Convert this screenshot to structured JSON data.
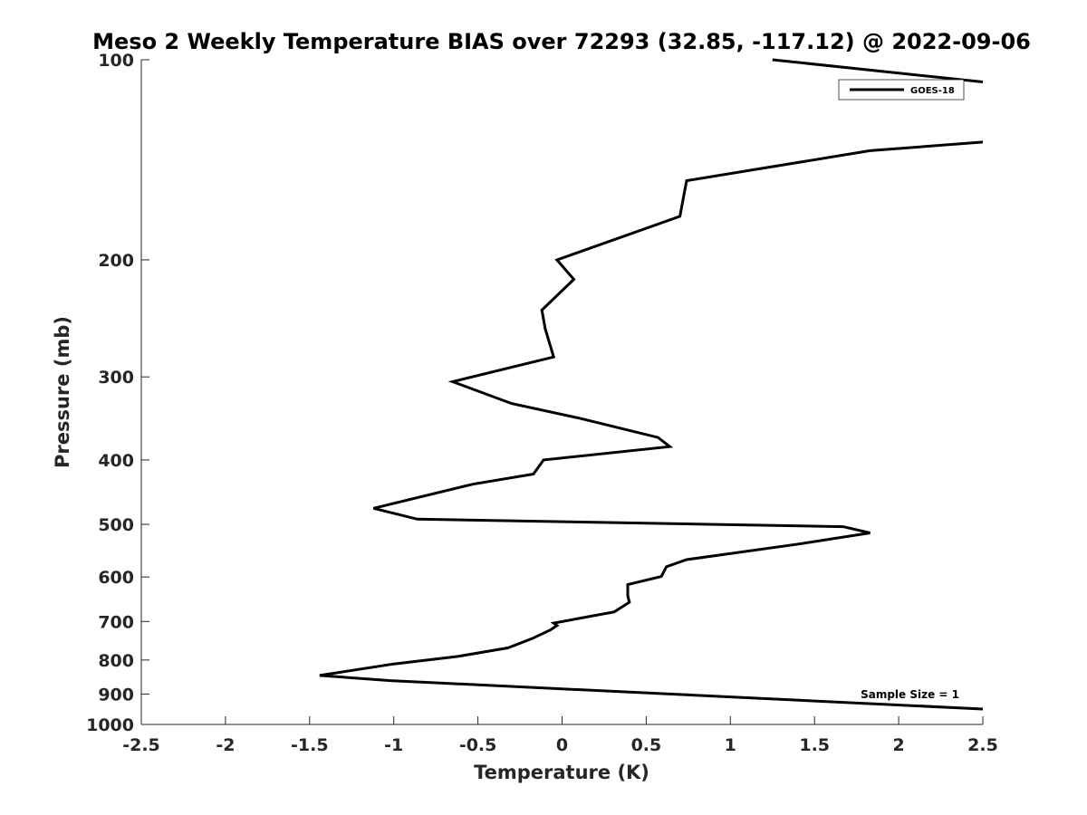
{
  "chart_data": {
    "type": "line",
    "title": "Meso 2 Weekly Temperature BIAS over 72293 (32.85, -117.12) @ 2022-09-06",
    "xlabel": "Temperature (K)",
    "ylabel": "Pressure (mb)",
    "xlim": [
      -2.5,
      2.5
    ],
    "ylim": [
      100,
      1000
    ],
    "y_scale": "log",
    "y_reversed": true,
    "x_ticks": [
      "-2.5",
      "-2",
      "-1.5",
      "-1",
      "-0.5",
      "0",
      "0.5",
      "1",
      "1.5",
      "2",
      "2.5"
    ],
    "x_tick_values": [
      -2.5,
      -2,
      -1.5,
      -1,
      -0.5,
      0,
      0.5,
      1,
      1.5,
      2,
      2.5
    ],
    "y_ticks": [
      "100",
      "200",
      "300",
      "400",
      "500",
      "600",
      "700",
      "800",
      "900",
      "1000"
    ],
    "y_tick_values": [
      100,
      200,
      300,
      400,
      500,
      600,
      700,
      800,
      900,
      1000
    ],
    "grid": false,
    "legend_position": "top-right",
    "series": [
      {
        "name": "GOES-18",
        "color": "#000000",
        "x": [
          1.25,
          2.5,
          null,
          2.5,
          1.83,
          0.74,
          0.7,
          -0.03,
          0.07,
          -0.12,
          -0.1,
          -0.05,
          -0.65,
          -0.3,
          0.1,
          0.57,
          0.64,
          -0.11,
          -0.17,
          -0.53,
          -1.12,
          -0.86,
          1.67,
          1.83,
          1.39,
          0.74,
          0.62,
          0.59,
          0.39,
          0.39,
          0.4,
          0.31,
          -0.05,
          -0.03,
          -0.07,
          -0.18,
          -0.32,
          -0.62,
          -1.0,
          -1.44,
          -1.02,
          2.5
        ],
        "y": [
          100,
          108,
          null,
          133,
          137,
          152,
          172,
          200,
          214,
          238,
          254,
          280,
          305,
          329,
          346,
          370,
          382,
          400,
          420,
          435,
          473,
          491,
          504,
          515,
          536,
          565,
          579,
          599,
          616,
          640,
          655,
          677,
          704,
          710,
          721,
          743,
          767,
          790,
          811,
          844,
          859,
          948
        ]
      }
    ],
    "annotation": "Sample Size = 1"
  }
}
